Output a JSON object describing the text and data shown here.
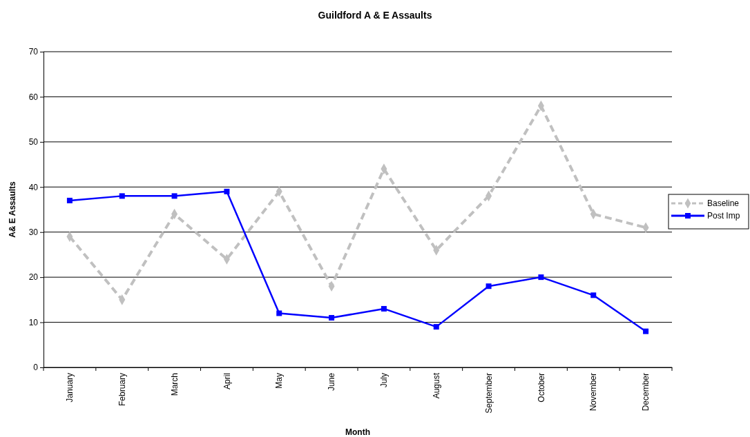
{
  "chart_data": {
    "type": "line",
    "title": "Guildford A & E Assaults",
    "xlabel": "Month",
    "ylabel": "A& E Assaults",
    "categories": [
      "January",
      "February",
      "March",
      "April",
      "May",
      "June",
      "July",
      "August",
      "September",
      "October",
      "November",
      "December"
    ],
    "series": [
      {
        "name": "Baseline",
        "color": "#c0c0c0",
        "marker": "diamond",
        "line_style": "dashed",
        "values": [
          29,
          15,
          34,
          24,
          39,
          18,
          44,
          26,
          38,
          58,
          34,
          31
        ]
      },
      {
        "name": "Post Imp",
        "color": "#0000ff",
        "marker": "square",
        "line_style": "solid",
        "values": [
          37,
          38,
          38,
          39,
          12,
          11,
          13,
          9,
          18,
          20,
          16,
          8
        ]
      }
    ],
    "ylim": [
      0,
      70
    ],
    "yticks": [
      0,
      10,
      20,
      30,
      40,
      50,
      60,
      70
    ],
    "grid": "y",
    "legend": "right"
  }
}
